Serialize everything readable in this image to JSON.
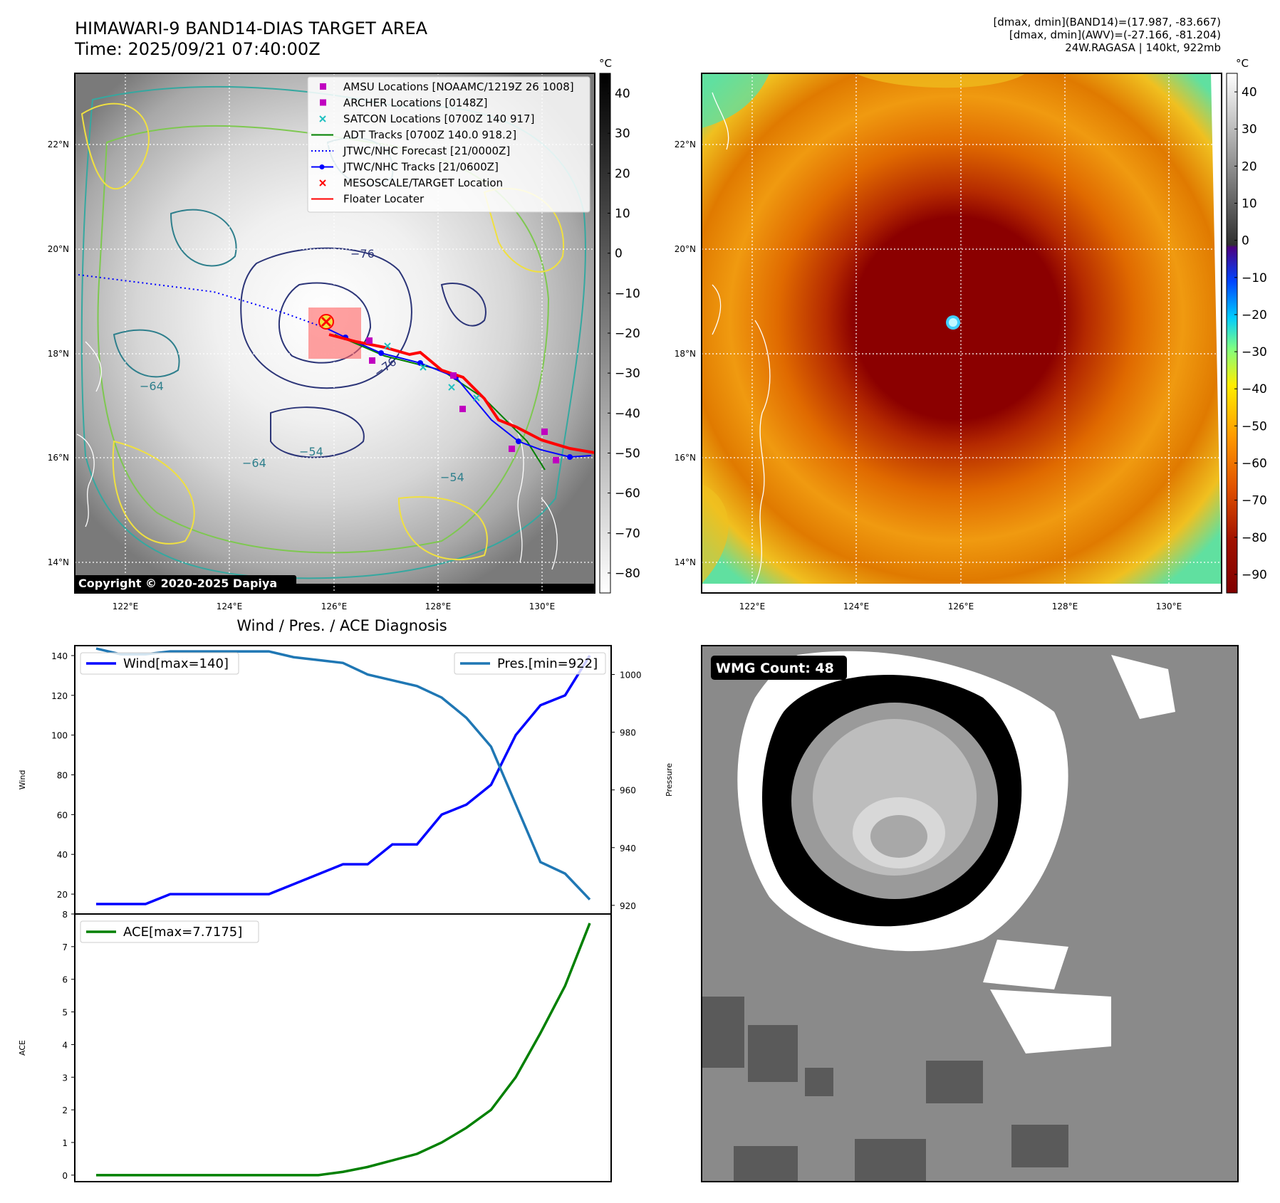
{
  "header": {
    "title": "HIMAWARI-9 BAND14-DIAS TARGET AREA",
    "time": "Time: 2025/09/21 07:40:00Z",
    "meta_band14": "[dmax, dmin](BAND14)=(17.987, -83.667)",
    "meta_awv": "[dmax, dmin](AWV)=(-27.166, -81.204)",
    "meta_storm": "24W.RAGASA | 140kt, 922mb"
  },
  "map_axes": {
    "lat_labels": [
      "22°N",
      "20°N",
      "18°N",
      "16°N",
      "14°N"
    ],
    "lon_labels": [
      "122°E",
      "124°E",
      "126°E",
      "128°E",
      "130°E"
    ],
    "colorbar_unit": "°C",
    "cbar_gray_ticks": [
      "40",
      "30",
      "20",
      "10",
      "0",
      "−10",
      "−20",
      "−30",
      "−40",
      "−50",
      "−60",
      "−70",
      "−80"
    ],
    "cbar_color_ticks": [
      "40",
      "30",
      "20",
      "10",
      "0",
      "−10",
      "−20",
      "−30",
      "−40",
      "−50",
      "−60",
      "−70",
      "−80",
      "−90"
    ]
  },
  "map_legend": [
    {
      "label": "AMSU Locations [NOAAMC/1219Z 26 1008]",
      "color": "#c000c0",
      "marker": "square"
    },
    {
      "label": "ARCHER Locations [0148Z]",
      "color": "#c000c0",
      "marker": "square"
    },
    {
      "label": "SATCON Locations [0700Z 140 917]",
      "color": "#20c0c0",
      "marker": "x"
    },
    {
      "label": "ADT Tracks [0700Z 140.0 918.2]",
      "color": "#008000",
      "marker": "line"
    },
    {
      "label": "JTWC/NHC Forecast [21/0000Z]",
      "color": "#0000ff",
      "marker": "dotted"
    },
    {
      "label": "JTWC/NHC Tracks [21/0600Z]",
      "color": "#0000ff",
      "marker": "line-dot"
    },
    {
      "label": "MESOSCALE/TARGET Location",
      "color": "#ff0000",
      "marker": "x"
    },
    {
      "label": "Floater Locater",
      "color": "#ff0000",
      "marker": "line"
    }
  ],
  "contour_labels": [
    "−76",
    "−76",
    "−64",
    "−54",
    "−64",
    "−54"
  ],
  "copyright": "Copyright © 2020-2025 Dapiya",
  "wmg": {
    "label": "WMG Count: 48"
  },
  "chart_data": [
    {
      "type": "line",
      "title": "Wind / Pres. / ACE Diagnosis",
      "ylabel": "Wind",
      "ylabel_right": "Pressure",
      "ylim": [
        10,
        145
      ],
      "ylim_right": [
        917,
        1010
      ],
      "yticks": [
        "140",
        "120",
        "100",
        "80",
        "60",
        "40",
        "20"
      ],
      "yticks_right": [
        "1000",
        "980",
        "960",
        "940",
        "920"
      ],
      "series": [
        {
          "name": "Wind[max=140]",
          "color": "#0000ff",
          "values": [
            15,
            15,
            15,
            20,
            20,
            20,
            20,
            20,
            25,
            30,
            35,
            35,
            45,
            45,
            60,
            65,
            75,
            100,
            115,
            120,
            140
          ]
        },
        {
          "name": "Pres.[min=922]",
          "color": "#1f77b4",
          "axis": "right",
          "values": [
            1009,
            1007,
            1007,
            1008,
            1008,
            1008,
            1008,
            1008,
            1006,
            1005,
            1004,
            1000,
            998,
            996,
            992,
            985,
            975,
            955,
            935,
            931,
            922
          ]
        }
      ]
    },
    {
      "type": "line",
      "ylabel": "ACE",
      "ylim": [
        -0.2,
        8
      ],
      "yticks": [
        "8",
        "7",
        "6",
        "5",
        "4",
        "3",
        "2",
        "1",
        "0"
      ],
      "series": [
        {
          "name": "ACE[max=7.7175]",
          "color": "#008000",
          "values": [
            0,
            0,
            0,
            0,
            0,
            0,
            0,
            0,
            0,
            0,
            0.1,
            0.25,
            0.45,
            0.65,
            1.0,
            1.45,
            2.0,
            3.0,
            4.35,
            5.8,
            7.7175
          ]
        }
      ]
    }
  ]
}
